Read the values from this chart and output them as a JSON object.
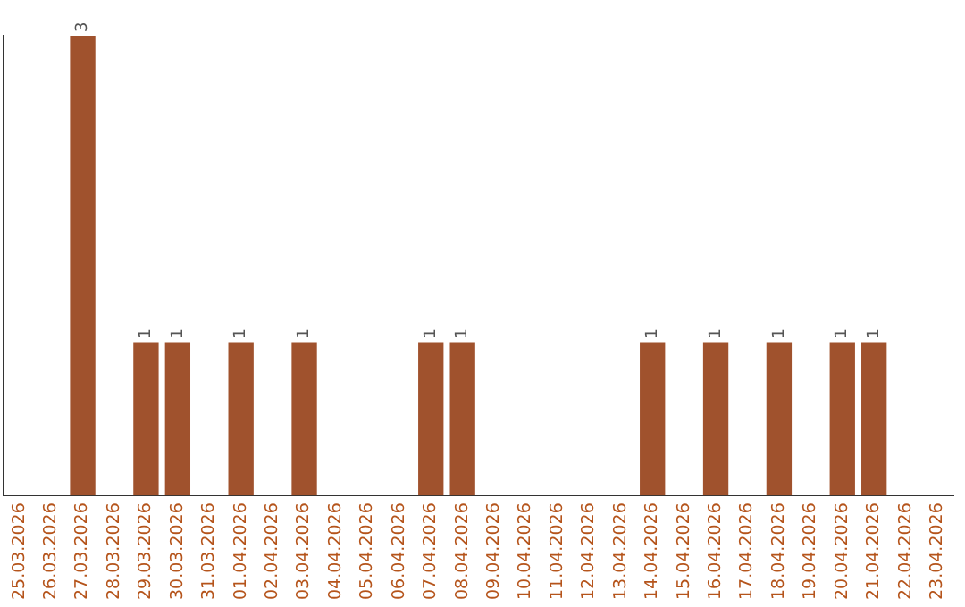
{
  "chart_data": {
    "type": "bar",
    "categories": [
      "25.03.2026",
      "26.03.2026",
      "27.03.2026",
      "28.03.2026",
      "29.03.2026",
      "30.03.2026",
      "31.03.2026",
      "01.04.2026",
      "02.04.2026",
      "03.04.2026",
      "04.04.2026",
      "05.04.2026",
      "06.04.2026",
      "07.04.2026",
      "08.04.2026",
      "09.04.2026",
      "10.04.2026",
      "11.04.2026",
      "12.04.2026",
      "13.04.2026",
      "14.04.2026",
      "15.04.2026",
      "16.04.2026",
      "17.04.2026",
      "18.04.2026",
      "19.04.2026",
      "20.04.2026",
      "21.04.2026",
      "22.04.2026",
      "23.04.2026"
    ],
    "values": [
      0,
      0,
      3,
      0,
      1,
      1,
      0,
      1,
      0,
      1,
      0,
      0,
      0,
      1,
      1,
      0,
      0,
      0,
      0,
      0,
      1,
      0,
      1,
      0,
      1,
      0,
      1,
      1,
      0,
      0
    ],
    "value_labels": [
      null,
      null,
      "3",
      null,
      "1",
      "1",
      null,
      "1",
      null,
      "1",
      null,
      null,
      null,
      "1",
      "1",
      null,
      null,
      null,
      null,
      null,
      "1",
      null,
      "1",
      null,
      "1",
      null,
      "1",
      "1",
      null,
      null
    ],
    "color": "#a0522d",
    "grid": false,
    "legend": false,
    "tick_labels": "x"
  }
}
